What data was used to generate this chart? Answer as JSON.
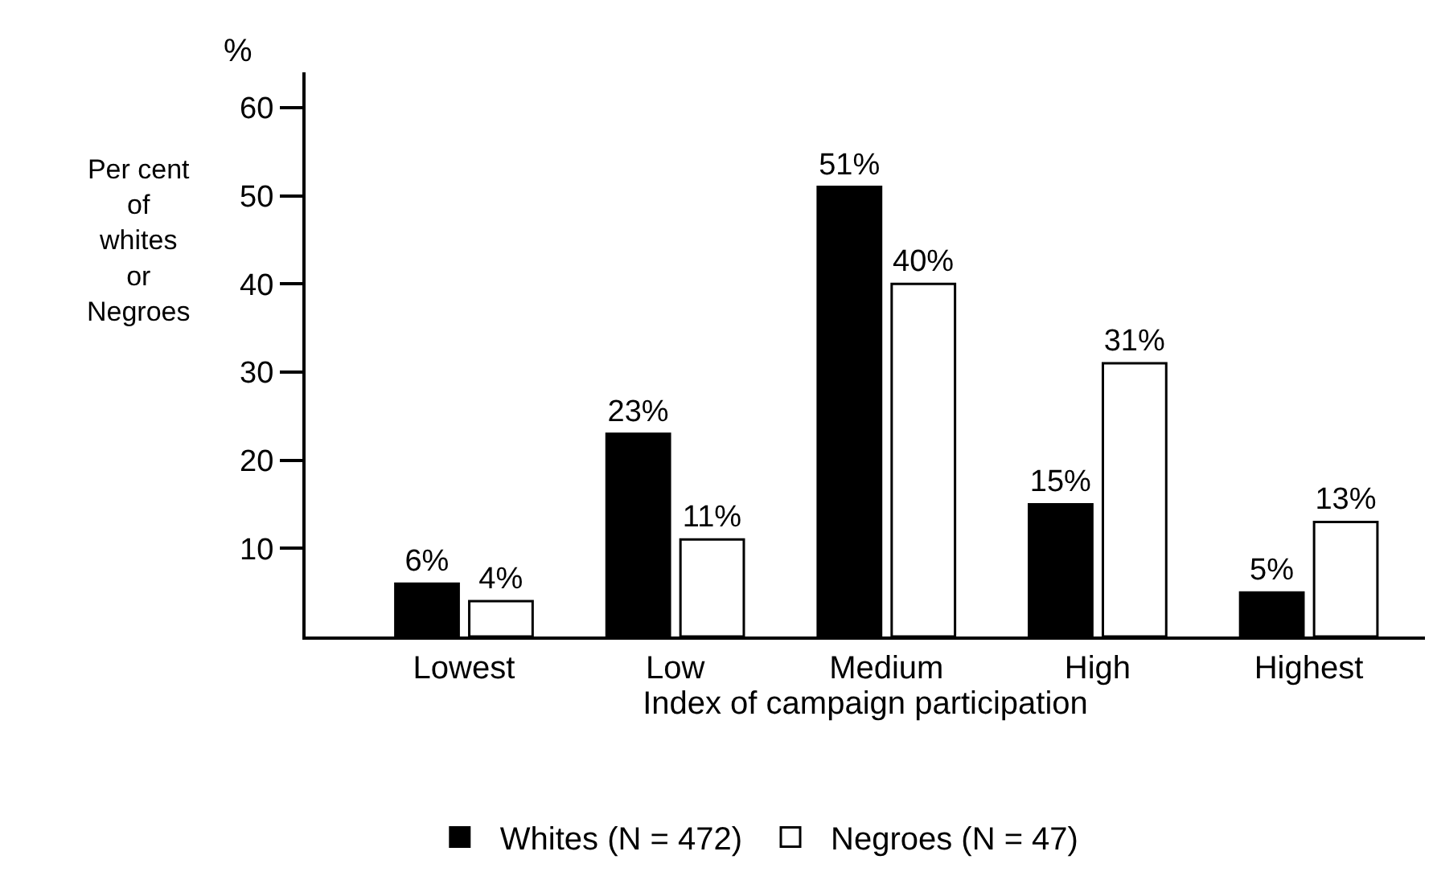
{
  "chart_data": {
    "type": "bar",
    "xlabel": "Index of campaign participation",
    "ylabel": "Per cent\nof\nwhites\nor\nNegroes",
    "annotations": [
      "%"
    ],
    "categories": [
      "Lowest",
      "Low",
      "Medium",
      "High",
      "Highest"
    ],
    "series": [
      {
        "name": "Whites (N = 472)",
        "color": "#000000",
        "values": [
          6,
          23,
          51,
          15,
          5
        ],
        "value_labels": [
          "6%",
          "23%",
          "51%",
          "15%",
          "5%"
        ]
      },
      {
        "name": "Negroes (N = 47)",
        "color": "#ffffff",
        "values": [
          4,
          11,
          40,
          31,
          13
        ],
        "value_labels": [
          "4%",
          "11%",
          "40%",
          "31%",
          "13%"
        ]
      }
    ],
    "ylim": [
      0,
      64
    ],
    "yticks": [
      10,
      20,
      30,
      40,
      50,
      60
    ],
    "legend": "bottom"
  }
}
